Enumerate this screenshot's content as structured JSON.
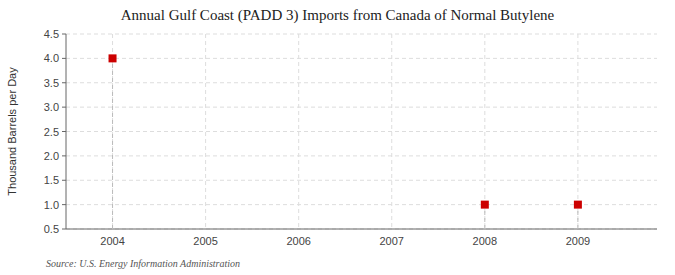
{
  "chart_data": {
    "type": "scatter",
    "title": "Annual Gulf Coast (PADD 3) Imports from Canada of Normal Butylene",
    "y_label": "Thousand Barrels per Day",
    "annotations": [
      "Source: U.S. Energy Information Administration"
    ],
    "x": [
      2004,
      2008,
      2009
    ],
    "values": [
      4.0,
      1.0,
      1.0
    ],
    "color": "#cc0000",
    "marker": "square",
    "xlim": [
      2003.5,
      2009.85
    ],
    "ylim": [
      0.5,
      4.5
    ],
    "xticks": [
      2004,
      2005,
      2006,
      2007,
      2008,
      2009
    ],
    "yticks": [
      0.5,
      {
        "value": 1.0,
        "label": "1.0"
      },
      1.5,
      {
        "value": 2.0,
        "label": "2.0"
      },
      2.5,
      {
        "value": 3.0,
        "label": "3.0"
      },
      3.5,
      {
        "value": 4.0,
        "label": "4.0"
      },
      4.5
    ],
    "grid": true
  }
}
